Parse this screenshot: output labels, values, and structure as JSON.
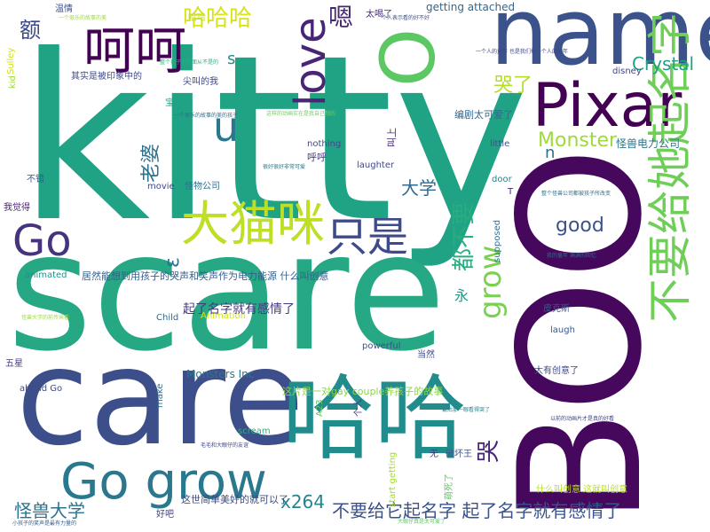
{
  "words": {
    "kitty": {
      "text": "kitty",
      "color": "#20a384"
    },
    "scare": {
      "text": "scare",
      "color": "#25a883"
    },
    "care": {
      "text": "care",
      "color": "#3d4f8a"
    },
    "boo": {
      "text": "BOO",
      "color": "#46085c"
    },
    "name": {
      "text": "name",
      "color": "#3b528b"
    },
    "pixar": {
      "text": "Pixar",
      "color": "#440154"
    },
    "hehe": {
      "text": "呵呵",
      "color": "#440154"
    },
    "o": {
      "text": "O",
      "color": "#5cc863"
    },
    "love": {
      "text": "love",
      "color": "#482576"
    },
    "hahaha": {
      "text": "哈哈哈",
      "color": "#d8e219"
    },
    "haha": {
      "text": "哈哈",
      "color": "#228c8d"
    },
    "bigcat": {
      "text": "大猫咪",
      "color": "#bddf26"
    },
    "zhishi": {
      "text": "只是",
      "color": "#3e4a89"
    },
    "go": {
      "text": "Go",
      "color": "#46327e"
    },
    "gogrow": {
      "text": "Go grow",
      "color": "#2a788e"
    },
    "grow": {
      "text": "grow",
      "color": "#7ad151"
    },
    "buyaogeita": {
      "text": "不要给她起名字",
      "color": "#6ece58"
    },
    "crystal": {
      "text": "Crystal",
      "color": "#1fa187"
    },
    "monster": {
      "text": "Monster",
      "color": "#9fda3a"
    },
    "good": {
      "text": "good",
      "color": "#3b528b"
    },
    "daxue": {
      "text": "大学",
      "color": "#31688e"
    },
    "laopo": {
      "text": "老婆",
      "color": "#2c728e"
    },
    "u": {
      "text": "u",
      "color": "#2a788e"
    },
    "en": {
      "text": "嗯",
      "color": "#482677"
    },
    "s": {
      "text": "s",
      "color": "#21918c"
    },
    "e": {
      "text": "ε",
      "color": "#2d708e"
    },
    "kule": {
      "text": "哭了",
      "color": "#b5de2b"
    },
    "dou": {
      "text": "都不要",
      "color": "#27ad81"
    },
    "ku": {
      "text": "哭",
      "color": "#482475"
    },
    "yong": {
      "text": "永",
      "color": "#1e9c89"
    },
    "guaishou": {
      "text": "怪兽大学",
      "color": "#2c738e"
    },
    "qilemingzi": {
      "text": "起了名字就有感情了",
      "color": "#453882"
    },
    "buyaogeita2": {
      "text": "不要给它起名字 起了名字就有感情了",
      "color": "#3b528b"
    },
    "x264": {
      "text": "x264",
      "color": "#25848e"
    },
    "haha_small": {
      "text": "哈哈",
      "color": "#bddf26"
    },
    "e1": {
      "text": "额",
      "color": "#3e4989"
    },
    "monstersinc": {
      "text": "Monsters Inc",
      "color": "#2a788e"
    },
    "guaishoudianli": {
      "text": "怪兽电力公司",
      "color": "#2b758e"
    },
    "gettingattached": {
      "text": "getting attached",
      "color": "#31688e"
    },
    "juqing": {
      "text": "居然能想到用孩子的哭声和笑声作为电力能源 什么叫创意",
      "color": "#355f8d"
    },
    "gaypianzi": {
      "text": "这片是一对gay couple养孩子的故事",
      "color": "#8bd646"
    },
    "jingdian": {
      "text": "这世简单美好的就可以了",
      "color": "#3e4a89"
    },
    "n": {
      "text": "n",
      "color": "#2d708e"
    },
    "bianjutai": {
      "text": "编剧太可爱了",
      "color": "#30698e"
    },
    "jiao": {
      "text": "叫上",
      "color": "#472c7a"
    },
    "huhu": {
      "text": "呼呼",
      "color": "#443983"
    },
    "nothing": {
      "text": "nothing",
      "color": "#3e4a89"
    },
    "laughter": {
      "text": "laughter",
      "color": "#3e4989"
    },
    "little": {
      "text": "little",
      "color": "#3b528b"
    },
    "door": {
      "text": "door",
      "color": "#25858e"
    },
    "movie": {
      "text": "movie",
      "color": "#3f4889"
    },
    "guaiwu": {
      "text": "怪物公司",
      "color": "#2c718e"
    },
    "buxing": {
      "text": "不错",
      "color": "#365c8d"
    },
    "wojuede": {
      "text": "我觉得",
      "color": "#482173"
    },
    "baobei": {
      "text": "宝贝",
      "color": "#1fa187"
    },
    "child": {
      "text": "Child",
      "color": "#31688e"
    },
    "animation": {
      "text": "Animation",
      "color": "#d2e21b"
    },
    "animated": {
      "text": "animated",
      "color": "#21918c"
    },
    "powerful": {
      "text": "powerful",
      "color": "#3b528b"
    },
    "dangran": {
      "text": "当然",
      "color": "#3f4889"
    },
    "wu": {
      "text": "五星",
      "color": "#433e85"
    },
    "aheadgo": {
      "text": "ahead Go",
      "color": "#3e4a89"
    },
    "make": {
      "text": "make",
      "color": "#2d708e"
    },
    "scream": {
      "text": "scream",
      "color": "#29af7f"
    },
    "startgetting": {
      "text": "start getting",
      "color": "#a5db36"
    },
    "haoba": {
      "text": "好吧",
      "color": "#3f4788"
    },
    "pikesi": {
      "text": "皮克斯",
      "color": "#38598c"
    },
    "laugh": {
      "text": "laugh",
      "color": "#375a8c"
    },
    "taiyouchuangyi": {
      "text": "太有创意了",
      "color": "#3e4a89"
    },
    "shenmejiao": {
      "text": "什么叫创意 这就叫创意",
      "color": "#b8de29"
    },
    "disney": {
      "text": "disney",
      "color": "#414487"
    },
    "supposed": {
      "text": "supposed",
      "color": "#2e6f8e"
    },
    "wu2": {
      "text": "无",
      "color": "#433d84"
    },
    "pohuai": {
      "text": "破坏王",
      "color": "#38588c"
    },
    "kid": {
      "text": "kid",
      "color": "#9dd93b"
    },
    "sulley": {
      "text": "Sulley",
      "color": "#d0e11c"
    },
    "qishi": {
      "text": "其实是被印象中的",
      "color": "#3f4889"
    },
    "maomao": {
      "text": "毛毛",
      "color": "#3b528b"
    },
    "xiaoguai": {
      "text": "尖叫的我",
      "color": "#3f4788"
    },
    "wenqing": {
      "text": "温情",
      "color": "#3d4e8a"
    },
    "taikeai": {
      "text": "太喝了",
      "color": "#472f7d"
    },
    "mengsi": {
      "text": "萌死了",
      "color": "#5ec962"
    },
    "a23": {
      "text": "A23",
      "color": "#5cc863"
    },
    "ge": {
      "text": "个人",
      "color": "#472c7a"
    },
    "t": {
      "text": "T",
      "color": "#482878"
    }
  },
  "phrases": [
    "一个很乐的故事的美",
    "整个孩子的外面从不是的",
    "一个很乐的故事的美的孩子",
    "个人表示看的好不好",
    "这样的动画实在是我自己想的",
    "很好很好非常可爱",
    "一个人的童年 也是我们每一个人的童年",
    "整个怪兽公司都被孩子所改变",
    "怪兽大学的前传来看",
    "毛毛和大眼仔的友谊",
    "最后那一眼看得哭了",
    "以前的动画片才是真的好看",
    "大眼仔真是太可爱了",
    "小孩子的笑声是最有力量的",
    "我的童年 满满的回忆"
  ]
}
